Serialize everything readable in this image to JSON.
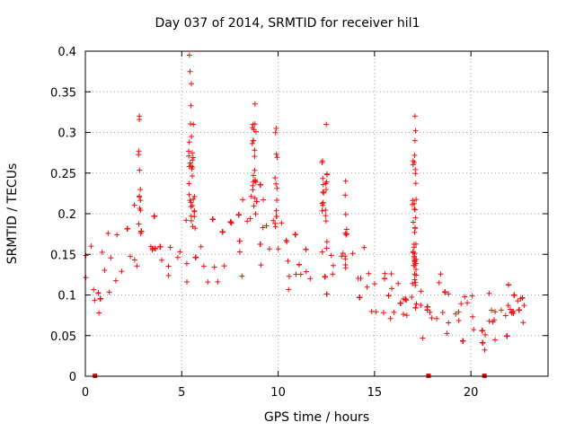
{
  "chart_data": {
    "type": "scatter",
    "title": "Day 037 of 2014, SRMTID for receiver hil1",
    "xlabel": "GPS time / hours",
    "ylabel": "SRMTID / TECUs",
    "xlim": [
      0,
      24
    ],
    "ylim": [
      0,
      0.4
    ],
    "xticks": [
      "0",
      "5",
      "10",
      "15",
      "20"
    ],
    "yticks": [
      "0",
      "0.05",
      "0.1",
      "0.15",
      "0.2",
      "0.25",
      "0.3",
      "0.35",
      "0.4"
    ],
    "grid": true,
    "marker": "+",
    "color": "#ee1111",
    "baseline_markers_x": [
      0.5,
      17.8,
      20.7
    ],
    "series": [
      {
        "name": "hil1",
        "profile": [
          {
            "x": 0.0,
            "y": 0.13
          },
          {
            "x": 0.5,
            "y": 0.12
          },
          {
            "x": 1.0,
            "y": 0.11
          },
          {
            "x": 1.5,
            "y": 0.12
          },
          {
            "x": 2.0,
            "y": 0.14
          },
          {
            "x": 2.5,
            "y": 0.16
          },
          {
            "x": 3.0,
            "y": 0.17
          },
          {
            "x": 3.5,
            "y": 0.15
          },
          {
            "x": 4.0,
            "y": 0.12
          },
          {
            "x": 4.5,
            "y": 0.11
          },
          {
            "x": 5.0,
            "y": 0.13
          },
          {
            "x": 5.5,
            "y": 0.17
          },
          {
            "x": 6.0,
            "y": 0.13
          },
          {
            "x": 6.5,
            "y": 0.12
          },
          {
            "x": 7.0,
            "y": 0.15
          },
          {
            "x": 7.5,
            "y": 0.16
          },
          {
            "x": 8.0,
            "y": 0.17
          },
          {
            "x": 8.5,
            "y": 0.18
          },
          {
            "x": 9.0,
            "y": 0.18
          },
          {
            "x": 9.5,
            "y": 0.17
          },
          {
            "x": 10.0,
            "y": 0.17
          },
          {
            "x": 10.5,
            "y": 0.15
          },
          {
            "x": 11.0,
            "y": 0.13
          },
          {
            "x": 11.5,
            "y": 0.13
          },
          {
            "x": 12.0,
            "y": 0.14
          },
          {
            "x": 12.5,
            "y": 0.14
          },
          {
            "x": 13.0,
            "y": 0.11
          },
          {
            "x": 13.5,
            "y": 0.12
          },
          {
            "x": 14.0,
            "y": 0.15
          },
          {
            "x": 14.5,
            "y": 0.13
          },
          {
            "x": 15.0,
            "y": 0.11
          },
          {
            "x": 15.5,
            "y": 0.1
          },
          {
            "x": 16.0,
            "y": 0.09
          },
          {
            "x": 16.5,
            "y": 0.08
          },
          {
            "x": 17.0,
            "y": 0.09
          },
          {
            "x": 17.5,
            "y": 0.08
          },
          {
            "x": 18.0,
            "y": 0.08
          },
          {
            "x": 18.5,
            "y": 0.09
          },
          {
            "x": 19.0,
            "y": 0.08
          },
          {
            "x": 19.5,
            "y": 0.08
          },
          {
            "x": 20.0,
            "y": 0.07
          },
          {
            "x": 20.5,
            "y": 0.065
          },
          {
            "x": 21.0,
            "y": 0.065
          },
          {
            "x": 21.5,
            "y": 0.07
          },
          {
            "x": 22.0,
            "y": 0.08
          },
          {
            "x": 22.5,
            "y": 0.075
          },
          {
            "x": 22.8,
            "y": 0.08
          }
        ],
        "peaks": [
          {
            "x": 2.8,
            "y": 0.32
          },
          {
            "x": 5.4,
            "y": 0.395
          },
          {
            "x": 5.5,
            "y": 0.36
          },
          {
            "x": 5.6,
            "y": 0.31
          },
          {
            "x": 8.8,
            "y": 0.335
          },
          {
            "x": 8.7,
            "y": 0.31
          },
          {
            "x": 9.9,
            "y": 0.305
          },
          {
            "x": 12.5,
            "y": 0.31
          },
          {
            "x": 12.3,
            "y": 0.265
          },
          {
            "x": 17.1,
            "y": 0.32
          },
          {
            "x": 17.1,
            "y": 0.29
          },
          {
            "x": 17.0,
            "y": 0.265
          },
          {
            "x": 17.1,
            "y": 0.205
          },
          {
            "x": 13.5,
            "y": 0.24
          }
        ]
      }
    ]
  }
}
